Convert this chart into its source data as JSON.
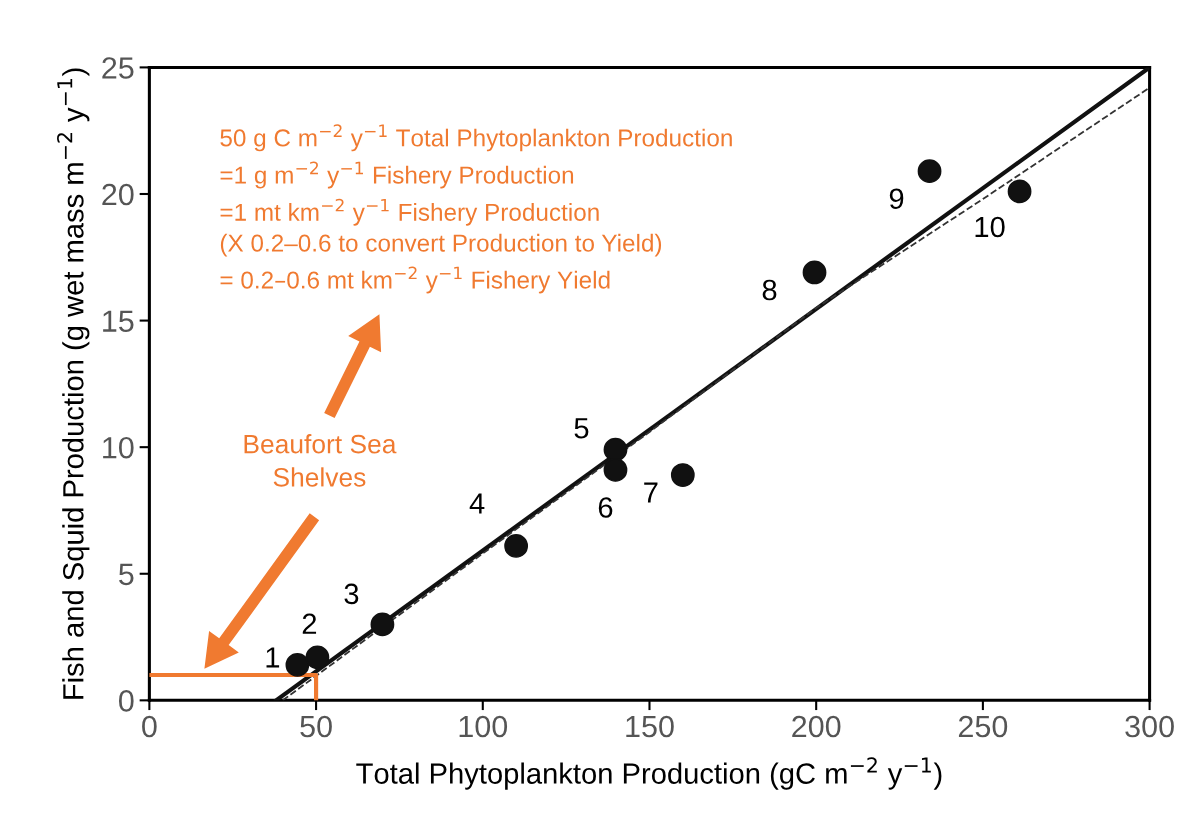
{
  "chart_data": {
    "type": "scatter",
    "xlabel": "Total Phytoplankton Production (gC m$^{−2}$ y$^{−1}$)",
    "ylabel": "Fish and Squid Production (g wet mass m$^{−2}$ y$^{−1}$)",
    "xlim": [
      0,
      300
    ],
    "ylim": [
      0,
      25
    ],
    "xticks": [
      0,
      50,
      100,
      150,
      200,
      250,
      300
    ],
    "yticks": [
      0,
      5,
      10,
      15,
      20,
      25
    ],
    "grid": false,
    "legend": false,
    "series": [
      {
        "color": "#111111",
        "marker": "circle",
        "x": [
          44.4,
          50.4,
          69.9,
          110,
          139.8,
          139.8,
          160,
          199.5,
          234,
          261
        ],
        "values": [
          1.4,
          1.7,
          3.0,
          6.1,
          9.9,
          9.1,
          8.9,
          16.9,
          20.9,
          20.1
        ]
      },
      {
        "type": "line",
        "color": "#111111",
        "line_style": "solid",
        "marker": "none",
        "x": [
          38,
          300
        ],
        "values": [
          0,
          25
        ]
      },
      {
        "type": "line",
        "color": "#333333",
        "line_style": "dashed",
        "marker": "none",
        "x": [
          40,
          100,
          150,
          200,
          250,
          300
        ],
        "values": [
          0,
          5.8,
          10.6,
          15.5,
          19.8,
          24.2
        ]
      },
      {
        "type": "line",
        "color": "#f07a30",
        "line_style": "solid",
        "marker": "none",
        "x": [
          0,
          50,
          50
        ],
        "values": [
          1,
          1,
          0
        ]
      }
    ],
    "annotations": [
      {
        "text": "1",
        "x": 44.4,
        "y": 1.4
      },
      {
        "text": "2",
        "x": 50.4,
        "y": 1.7
      },
      {
        "text": "3",
        "x": 69.9,
        "y": 3.0
      },
      {
        "text": "4",
        "x": 110,
        "y": 6.1
      },
      {
        "text": "5",
        "x": 139.8,
        "y": 9.9
      },
      {
        "text": "6",
        "x": 139.8,
        "y": 9.1
      },
      {
        "text": "7",
        "x": 160,
        "y": 8.9
      },
      {
        "text": "8",
        "x": 199.5,
        "y": 16.9
      },
      {
        "text": "9",
        "x": 234,
        "y": 20.9
      },
      {
        "text": "10",
        "x": 261,
        "y": 20.1
      },
      "Beaufort Sea\nShelves",
      "50 g C m$^{−2}$ y$^{−1}$ Total Phytoplankton Production\n=1 g m$^{−2}$ y$^{−1}$ Fishery Production\n=1 mt km$^{−2}$ y$^{−1}$ Fishery Production\n(X 0.2–0.6 to convert Production to Yield)\n= 0.2–0.6 mt km$^{−2}$ y$^{−1}$ Fishery Yield"
    ]
  }
}
